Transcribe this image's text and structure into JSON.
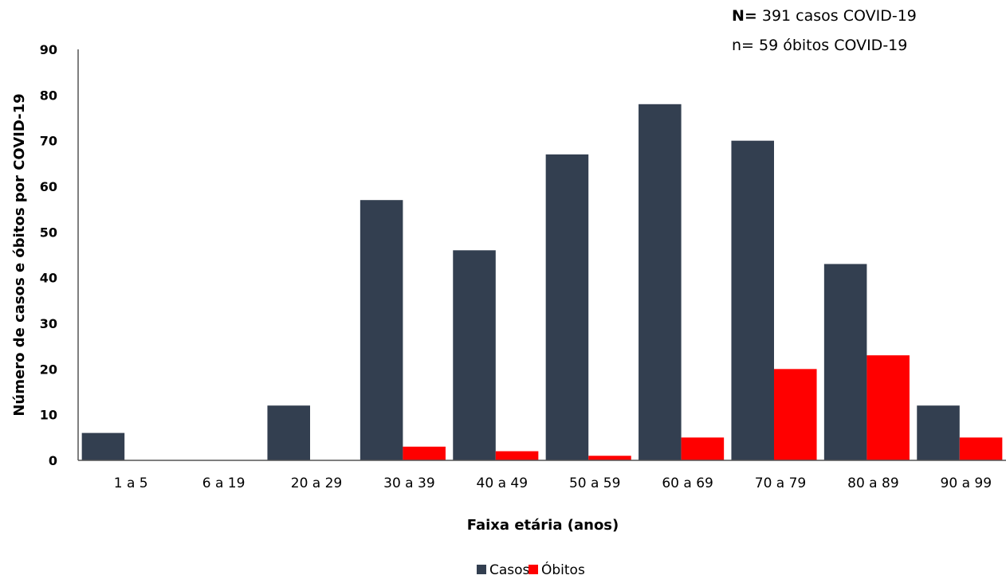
{
  "annotation": {
    "line1_bold": "N=",
    "line1_rest": " 391 casos COVID-19",
    "line2": "n= 59 óbitos COVID-19"
  },
  "chart_data": {
    "type": "bar",
    "title": "",
    "xlabel": "Faixa etária (anos)",
    "ylabel": "Número de casos e óbitos por COVID-19",
    "ylim": [
      0,
      90
    ],
    "yticks": [
      0,
      10,
      20,
      30,
      40,
      50,
      60,
      70,
      80,
      90
    ],
    "grid": false,
    "legend_position": "bottom",
    "categories": [
      "1 a 5",
      "6 a 19",
      "20 a 29",
      "30 a 39",
      "40 a 49",
      "50 a 59",
      "60 a 69",
      "70 a 79",
      "80 a 89",
      "90 a 99"
    ],
    "series": [
      {
        "name": "Casos",
        "color": "#333f50",
        "values": [
          6,
          0,
          12,
          57,
          46,
          67,
          78,
          70,
          43,
          12
        ]
      },
      {
        "name": "Óbitos",
        "color": "#ff0000",
        "values": [
          0,
          0,
          0,
          3,
          2,
          1,
          5,
          20,
          23,
          5
        ]
      }
    ]
  }
}
